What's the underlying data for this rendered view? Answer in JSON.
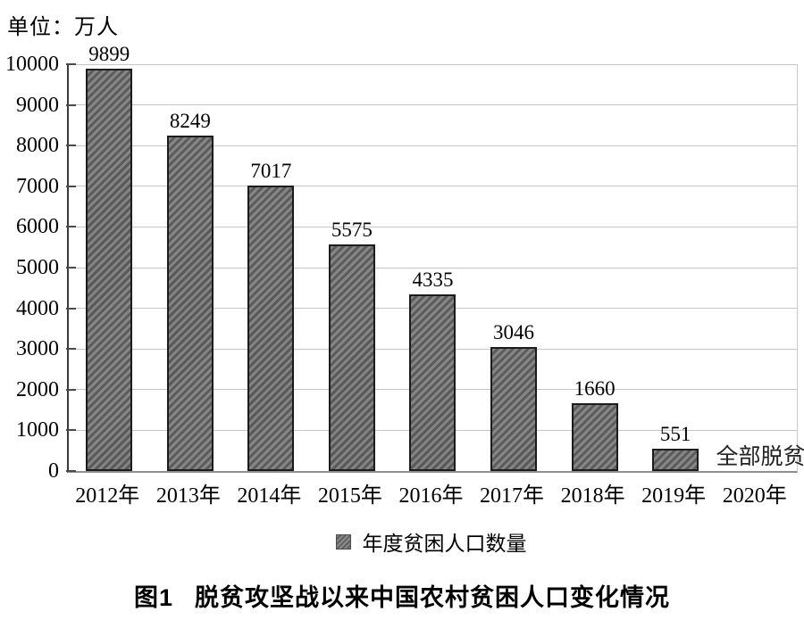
{
  "unit_label": "单位：万人",
  "chart_data": {
    "type": "bar",
    "title": "图1 脱贫攻坚战以来中国农村贫困人口变化情况",
    "categories": [
      "2012年",
      "2013年",
      "2014年",
      "2015年",
      "2016年",
      "2017年",
      "2018年",
      "2019年",
      "2020年"
    ],
    "values": [
      9899,
      8249,
      7017,
      5575,
      4335,
      3046,
      1660,
      551,
      null
    ],
    "series_name": "年度贫困人口数量",
    "unit": "万人",
    "ylim": [
      0,
      10000
    ],
    "yticks": [
      0,
      1000,
      2000,
      3000,
      4000,
      5000,
      6000,
      7000,
      8000,
      9000,
      10000
    ],
    "grid": "horizontal",
    "legend_position": "bottom",
    "bar_labels_shown": true,
    "annotation": {
      "text": "全部脱贫",
      "category": "2020年",
      "y": 0
    },
    "colors": {
      "bar_fill": "#858585",
      "bar_hatch": "#5a5a5a",
      "bar_border": "#1c1c1c",
      "gridline": "#c6c6c6",
      "axis_left": "#3a3a3a",
      "axis_bottom": "#8f8f8f",
      "text": "#000000"
    }
  },
  "legend": {
    "label": "年度贫困人口数量"
  },
  "caption": {
    "figure_no": "图1",
    "title": "脱贫攻坚战以来中国农村贫困人口变化情况"
  }
}
